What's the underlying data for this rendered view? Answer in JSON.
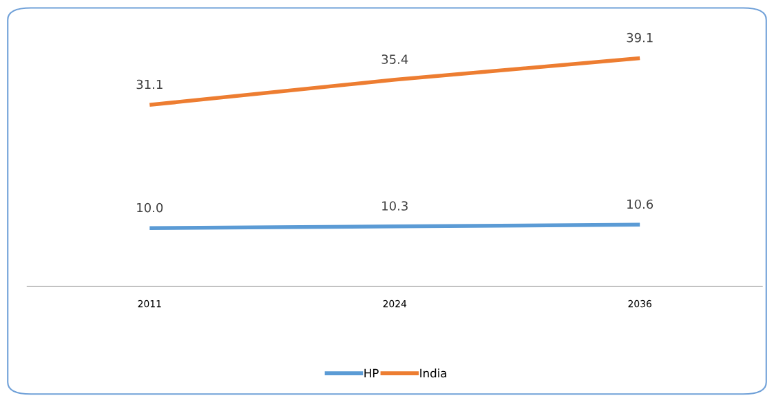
{
  "chart_data": {
    "type": "line",
    "categories": [
      "2011",
      "2024",
      "2036"
    ],
    "series": [
      {
        "name": "HP",
        "color": "#5b9bd5",
        "values": [
          10.0,
          10.3,
          10.6
        ],
        "value_labels": [
          "10.0",
          "10.3",
          "10.6"
        ]
      },
      {
        "name": "India",
        "color": "#ed7d31",
        "values": [
          31.1,
          35.4,
          39.1
        ],
        "value_labels": [
          "31.1",
          "35.4",
          "39.1"
        ]
      }
    ],
    "legend": "bottom",
    "grid": false,
    "marker": "none",
    "line_style": "solid"
  }
}
